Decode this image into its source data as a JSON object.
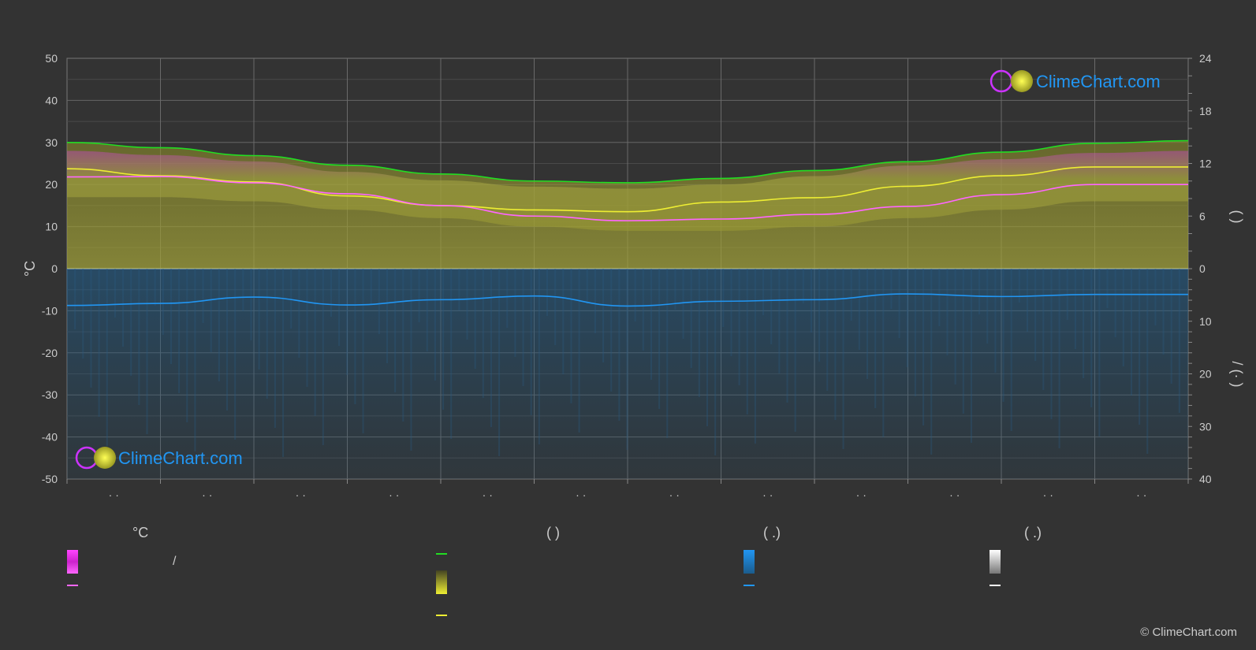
{
  "chart_data": {
    "type": "line",
    "title": "",
    "y_left": {
      "label": "°C",
      "range": [
        -50,
        50
      ],
      "ticks": [
        50,
        40,
        30,
        20,
        10,
        0,
        -10,
        -20,
        -30,
        -40,
        -50
      ]
    },
    "y_right_top": {
      "label": "( )",
      "range": [
        0,
        24
      ],
      "ticks": [
        24,
        18,
        12,
        6,
        0
      ]
    },
    "y_right_bottom": {
      "label": "/ (· )",
      "range": [
        0,
        40
      ],
      "ticks": [
        10,
        20,
        30,
        40
      ]
    },
    "x_tick_labels": [
      "· ·",
      "· ·",
      "· ·",
      "· ·",
      "· ·",
      "· ·",
      "· ·",
      "· ·",
      "· ·",
      "· ·",
      "· ·",
      "· ·"
    ],
    "month_positions": [
      0.5,
      1.5,
      2.5,
      3.5,
      4.5,
      5.5,
      6.5,
      7.5,
      8.5,
      9.5,
      10.5,
      11.5
    ],
    "series": [
      {
        "key": "daylight",
        "color": "#22dd22",
        "values": [
          14.4,
          13.8,
          12.9,
          11.8,
          10.8,
          10.0,
          9.8,
          10.3,
          11.2,
          12.2,
          13.3,
          14.3,
          14.6
        ]
      },
      {
        "key": "sunshine",
        "color": "#eeee33",
        "values": [
          11.4,
          10.6,
          9.9,
          8.3,
          7.2,
          6.7,
          6.5,
          7.6,
          8.1,
          9.4,
          10.6,
          11.6,
          11.6
        ]
      },
      {
        "key": "mean_temperature",
        "color": "#ff66ff",
        "values": [
          21.8,
          21.9,
          20.4,
          17.8,
          15.0,
          12.5,
          11.4,
          11.8,
          12.9,
          14.8,
          17.6,
          20.0,
          20.0
        ]
      },
      {
        "key": "precipitation",
        "color": "#2196f3",
        "values": [
          7.0,
          6.6,
          5.4,
          6.9,
          5.9,
          5.2,
          7.1,
          6.2,
          5.9,
          4.8,
          5.3,
          4.9,
          4.9
        ]
      }
    ],
    "bands": [
      {
        "key": "temp_range",
        "low": [
          17,
          17,
          16,
          14,
          12,
          10,
          9,
          9,
          10,
          12,
          14,
          16,
          16
        ],
        "high": [
          28,
          27,
          25.5,
          23,
          21,
          19.5,
          19,
          20,
          22,
          24.5,
          26,
          27.5,
          28
        ]
      }
    ],
    "grid": true
  },
  "legend": {
    "col1_header": "°C",
    "col2_header": "( )",
    "col3_header": "( .)",
    "col4_header": "( .)",
    "range_label": "/"
  },
  "watermark": {
    "brand": "ClimeChart.com"
  },
  "copyright": "© ClimeChart.com",
  "colors": {
    "background": "#333333",
    "grid": "#666666",
    "text": "#cccccc",
    "brand": "#2196f3"
  }
}
